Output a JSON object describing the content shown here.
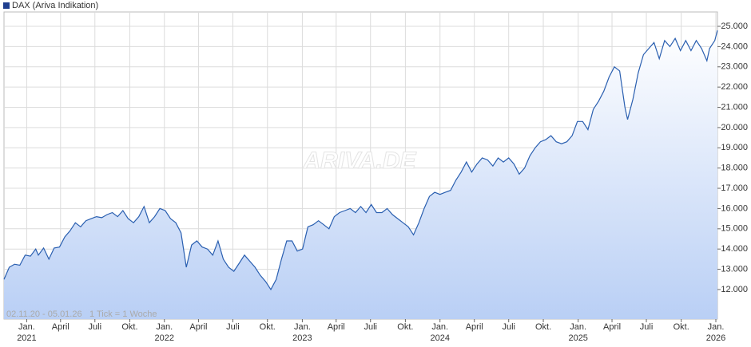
{
  "chart_data": {
    "type": "line",
    "watermark": "ARIVA.DE",
    "footnote": "02.11.20 - 05.01.26",
    "footnote_tick": "1 Tick = 1 Woche",
    "grid": true,
    "legend": "top-left",
    "xlim": [
      0,
      270
    ],
    "xticks": [
      {
        "value": 8.6,
        "label": "Jan.",
        "year": "2021"
      },
      {
        "value": 21.4,
        "label": "April"
      },
      {
        "value": 34.4,
        "label": "Juli"
      },
      {
        "value": 47.6,
        "label": "Okt."
      },
      {
        "value": 60.7,
        "label": "Jan.",
        "year": "2022"
      },
      {
        "value": 73.6,
        "label": "April"
      },
      {
        "value": 86.6,
        "label": "Juli"
      },
      {
        "value": 99.7,
        "label": "Okt."
      },
      {
        "value": 112.9,
        "label": "Jan.",
        "year": "2023"
      },
      {
        "value": 125.7,
        "label": "April"
      },
      {
        "value": 138.7,
        "label": "Juli"
      },
      {
        "value": 151.9,
        "label": "Okt."
      },
      {
        "value": 165,
        "label": "Jan.",
        "year": "2024"
      },
      {
        "value": 178,
        "label": "April"
      },
      {
        "value": 191,
        "label": "Juli"
      },
      {
        "value": 204.1,
        "label": "Okt."
      },
      {
        "value": 217.3,
        "label": "Jan.",
        "year": "2025"
      },
      {
        "value": 230.1,
        "label": "April"
      },
      {
        "value": 243.1,
        "label": "Juli"
      },
      {
        "value": 256.3,
        "label": "Okt."
      },
      {
        "value": 269.4,
        "label": "Jan.",
        "year": "2026"
      }
    ],
    "ylim": [
      10540,
      25710
    ],
    "yticks": [
      {
        "value": 12000,
        "label": "12.000"
      },
      {
        "value": 13000,
        "label": "13.000"
      },
      {
        "value": 14000,
        "label": "14.000"
      },
      {
        "value": 15000,
        "label": "15.000"
      },
      {
        "value": 16000,
        "label": "16.000"
      },
      {
        "value": 17000,
        "label": "17.000"
      },
      {
        "value": 18000,
        "label": "18.000"
      },
      {
        "value": 19000,
        "label": "19.000"
      },
      {
        "value": 20000,
        "label": "20.000"
      },
      {
        "value": 21000,
        "label": "21.000"
      },
      {
        "value": 22000,
        "label": "22.000"
      },
      {
        "value": 23000,
        "label": "23.000"
      },
      {
        "value": 24000,
        "label": "24.000"
      },
      {
        "value": 25000,
        "label": "25.000"
      }
    ],
    "x": [
      0,
      2,
      4,
      6,
      8,
      10,
      12,
      13,
      15,
      17,
      19,
      21,
      23,
      25,
      27,
      29,
      31,
      33,
      35,
      37,
      39,
      41,
      43,
      45,
      47,
      49,
      51,
      53,
      55,
      57,
      59,
      61,
      63,
      65,
      67,
      69,
      71,
      73,
      75,
      77,
      79,
      81,
      83,
      85,
      87,
      89,
      91,
      93,
      95,
      97,
      99,
      101,
      103,
      105,
      107,
      109,
      111,
      113,
      115,
      117,
      119,
      121,
      123,
      125,
      127,
      129,
      131,
      133,
      135,
      137,
      139,
      141,
      143,
      145,
      147,
      149,
      151,
      153,
      155,
      157,
      159,
      161,
      163,
      165,
      167,
      169,
      171,
      173,
      175,
      177,
      179,
      181,
      183,
      185,
      187,
      189,
      191,
      193,
      195,
      197,
      199,
      201,
      203,
      205,
      207,
      209,
      211,
      213,
      215,
      217,
      219,
      221,
      223,
      225,
      227,
      229,
      231,
      233,
      235,
      236,
      238,
      240,
      242,
      244,
      246,
      248,
      250,
      252,
      254,
      256,
      258,
      260,
      262,
      264,
      266,
      267,
      269,
      270
    ],
    "series": [
      {
        "name": "DAX (Ariva Indikation)",
        "color": "#2a5fb0",
        "values": [
          12500,
          13100,
          13250,
          13200,
          13700,
          13650,
          14000,
          13700,
          14050,
          13500,
          14050,
          14100,
          14600,
          14900,
          15300,
          15100,
          15400,
          15500,
          15600,
          15550,
          15700,
          15800,
          15600,
          15900,
          15500,
          15300,
          15600,
          16100,
          15300,
          15600,
          16000,
          15900,
          15500,
          15300,
          14800,
          13100,
          14200,
          14400,
          14100,
          14000,
          13700,
          14400,
          13500,
          13100,
          12900,
          13300,
          13700,
          13400,
          13100,
          12700,
          12400,
          12000,
          12500,
          13500,
          14400,
          14400,
          13900,
          14000,
          15100,
          15200,
          15400,
          15200,
          15000,
          15600,
          15800,
          15900,
          16000,
          15800,
          16100,
          15800,
          16200,
          15800,
          15800,
          16000,
          15700,
          15500,
          15300,
          15100,
          14700,
          15300,
          16000,
          16600,
          16800,
          16700,
          16800,
          16900,
          17400,
          17800,
          18300,
          17800,
          18200,
          18500,
          18400,
          18100,
          18500,
          18300,
          18500,
          18200,
          17700,
          18000,
          18600,
          19000,
          19300,
          19400,
          19600,
          19300,
          19200,
          19300,
          19600,
          20300,
          20300,
          19900,
          20900,
          21300,
          21800,
          22500,
          23000,
          22800,
          21000,
          20400,
          21400,
          22700,
          23600,
          23900,
          24200,
          23400,
          24300,
          24000,
          24400,
          23800,
          24300,
          23800,
          24300,
          23900,
          23300,
          23900,
          24300,
          24800
        ]
      }
    ]
  }
}
